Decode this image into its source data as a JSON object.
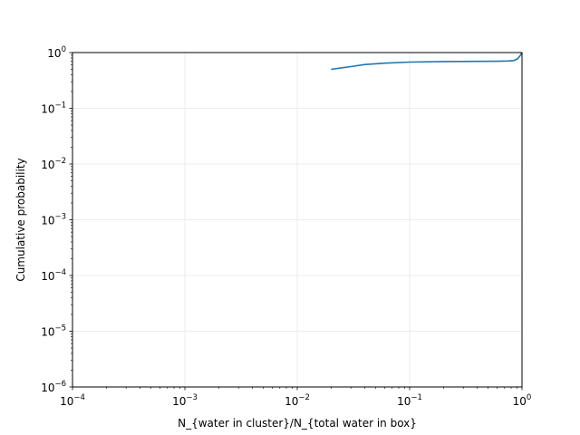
{
  "chart_data": {
    "type": "line",
    "title": "",
    "xlabel": "N_{water in cluster}/N_{total water in box}",
    "ylabel": "Cumulative probability",
    "xscale": "log",
    "yscale": "log",
    "xlim": [
      0.0001,
      1
    ],
    "ylim": [
      1e-06,
      1
    ],
    "grid": true,
    "legend": "none",
    "x_tick_labels": [
      {
        "value": 0.0001,
        "base": "10",
        "exp": "−4"
      },
      {
        "value": 0.001,
        "base": "10",
        "exp": "−3"
      },
      {
        "value": 0.01,
        "base": "10",
        "exp": "−2"
      },
      {
        "value": 0.1,
        "base": "10",
        "exp": "−1"
      },
      {
        "value": 1,
        "base": "10",
        "exp": "0"
      }
    ],
    "y_tick_labels": [
      {
        "value": 1e-06,
        "base": "10",
        "exp": "−6"
      },
      {
        "value": 1e-05,
        "base": "10",
        "exp": "−5"
      },
      {
        "value": 0.0001,
        "base": "10",
        "exp": "−4"
      },
      {
        "value": 0.001,
        "base": "10",
        "exp": "−3"
      },
      {
        "value": 0.01,
        "base": "10",
        "exp": "−2"
      },
      {
        "value": 0.1,
        "base": "10",
        "exp": "−1"
      },
      {
        "value": 1,
        "base": "10",
        "exp": "0"
      }
    ],
    "series": [
      {
        "color": "#1f77b4",
        "x": [
          0.02,
          0.03,
          0.04,
          0.06,
          0.1,
          0.2,
          0.4,
          0.6,
          0.75,
          0.85,
          0.92,
          0.97,
          1.0
        ],
        "y": [
          0.5,
          0.56,
          0.61,
          0.645,
          0.675,
          0.69,
          0.695,
          0.7,
          0.705,
          0.72,
          0.78,
          0.9,
          1.0
        ]
      }
    ]
  }
}
